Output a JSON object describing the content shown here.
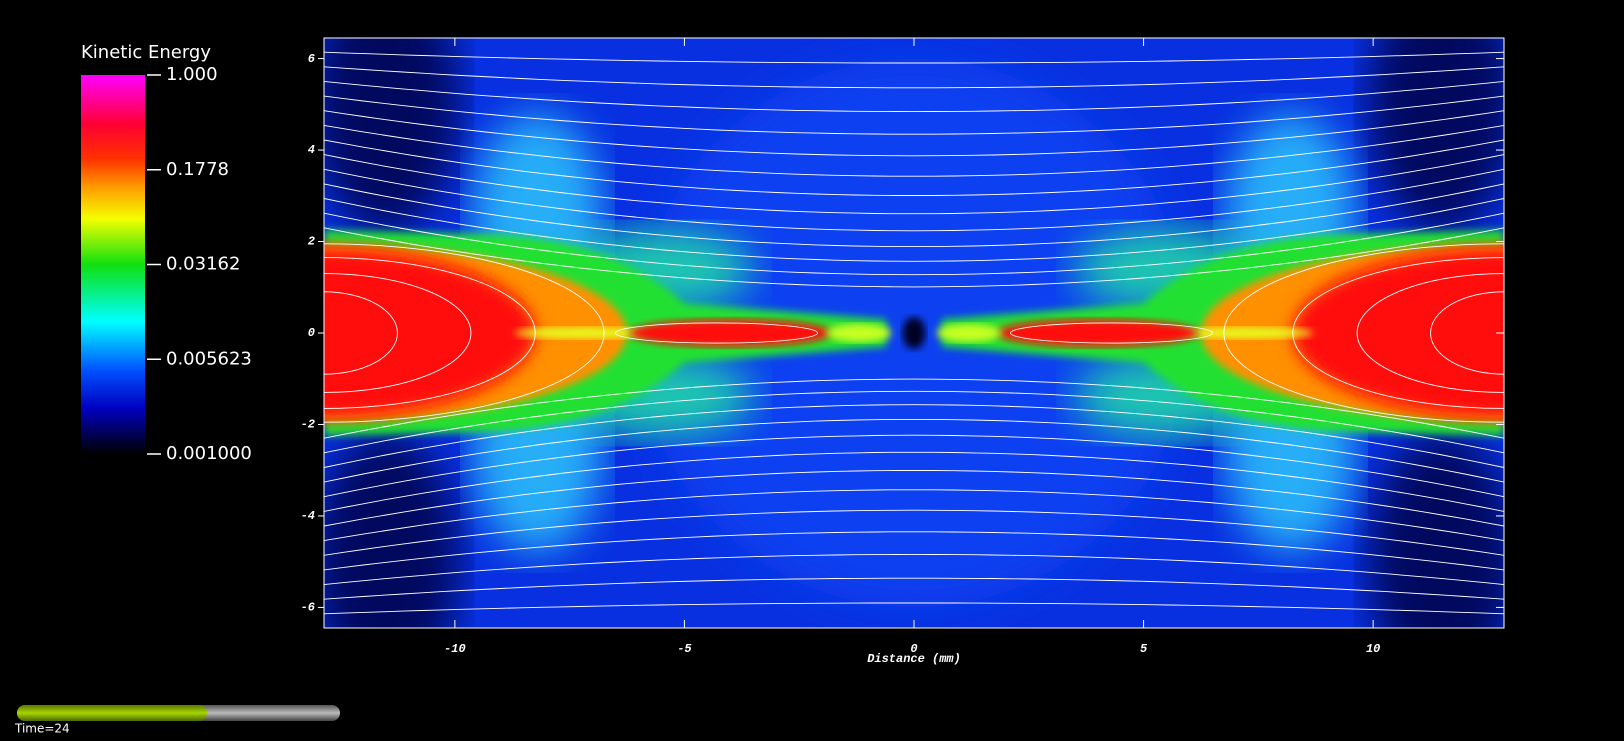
{
  "chart_data": {
    "type": "heatmap",
    "colorbar": {
      "title": "Kinetic Energy",
      "log": true,
      "lim": [
        0.001,
        1
      ],
      "ticks": [
        {
          "value": 1,
          "label": "1.000"
        },
        0.1778,
        0.03162,
        0.005623,
        {
          "value": 0.001,
          "label": "0.001000"
        }
      ]
    },
    "xlabel": "Distance (mm)",
    "xlim": [
      -12.85,
      12.85
    ],
    "ylim": [
      -6.45,
      6.45
    ],
    "xticks": [
      -10,
      -5,
      0,
      5,
      10
    ],
    "yticks": [
      -6,
      -4,
      -2,
      0,
      2,
      4,
      6
    ]
  },
  "time_label": "Time=24"
}
